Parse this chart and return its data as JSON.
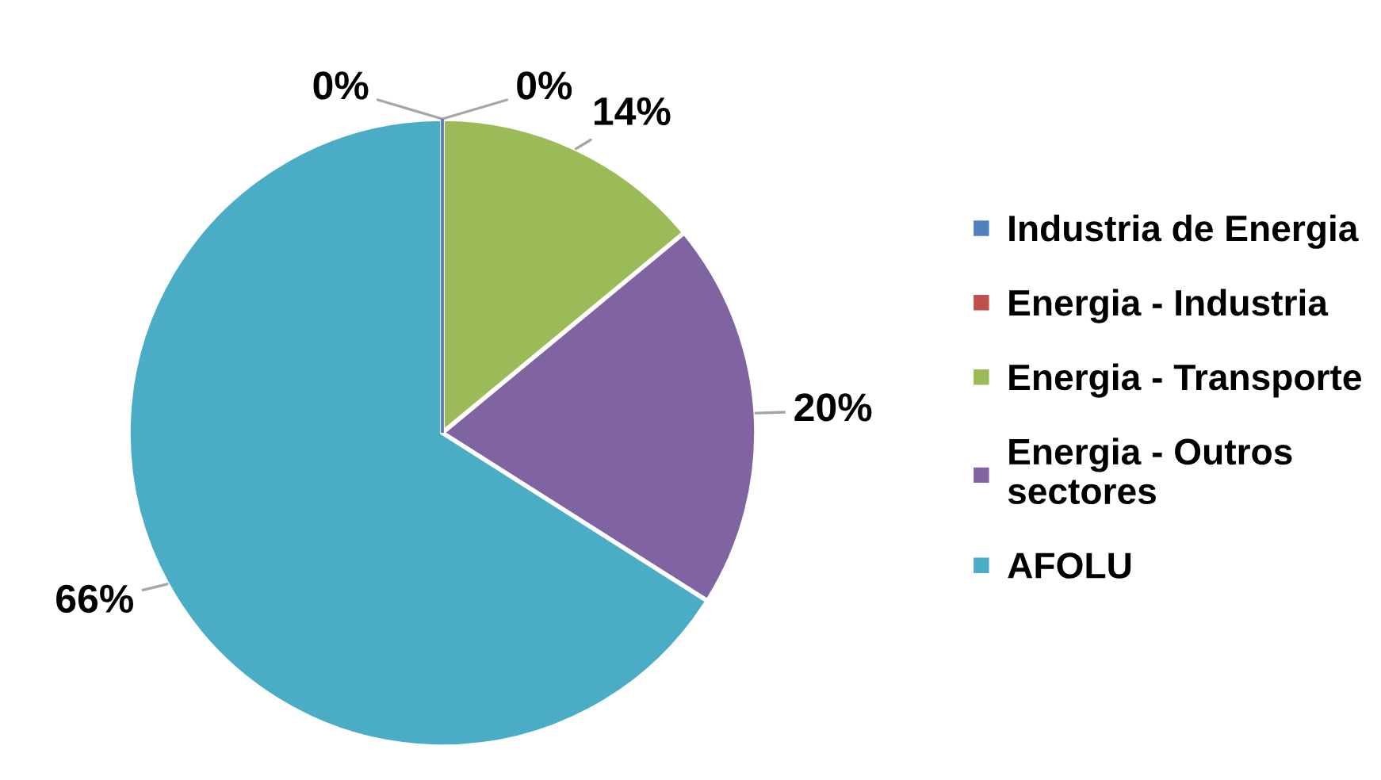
{
  "chart_data": {
    "type": "pie",
    "categories": [
      "Industria de Energia",
      "Energia - Industria",
      "Energia - Transporte",
      "Energia - Outros sectores",
      "AFOLU"
    ],
    "values": [
      0,
      0,
      14,
      20,
      66
    ],
    "colors": [
      "#4f81bd",
      "#c0504d",
      "#9bbb59",
      "#8064a2",
      "#4bacc6"
    ],
    "value_labels": [
      "0%",
      "0%",
      "14%",
      "20%",
      "66%"
    ],
    "legend": "right"
  }
}
